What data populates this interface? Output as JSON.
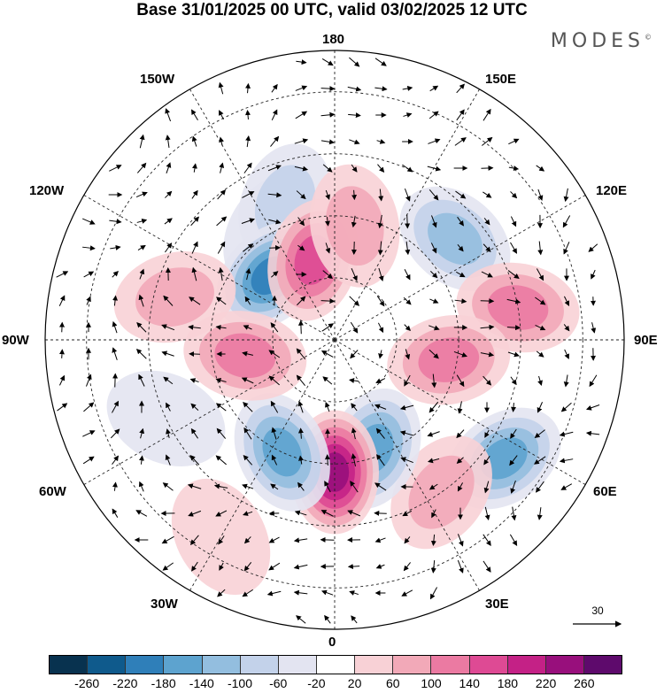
{
  "title": "Base 31/01/2025 00 UTC, valid 03/02/2025 12 UTC",
  "brand": "MODES",
  "brand_mark": "©",
  "longitude_labels": {
    "top": "180",
    "bottom": "0",
    "left": "90W",
    "right": "90E",
    "upper_left_1": "150W",
    "upper_left_2": "120W",
    "lower_left_1": "60W",
    "lower_left_2": "30W",
    "upper_right_1": "150E",
    "upper_right_2": "120E",
    "lower_right_1": "60E",
    "lower_right_2": "30E"
  },
  "reference_vector": {
    "label": "30"
  },
  "colorbar": {
    "colors": [
      "#08324f",
      "#0f5a8c",
      "#2f7fb9",
      "#5da3cf",
      "#93bedf",
      "#c3d2ea",
      "#e3e4f1",
      "#ffffff",
      "#f8d1d6",
      "#f2a9b8",
      "#eb7aa2",
      "#de4a94",
      "#c42186",
      "#980f7c",
      "#5e0a6c"
    ],
    "tick_labels": [
      "-260",
      "-220",
      "-180",
      "-140",
      "-100",
      "-60",
      "-20",
      "20",
      "60",
      "100",
      "140",
      "180",
      "220",
      "260"
    ]
  },
  "anomaly_centers": [
    {
      "lon": -150,
      "lat": 60,
      "value": -60
    },
    {
      "lon": -160,
      "lat": 55,
      "value": -100
    },
    {
      "lon": -135,
      "lat": 68,
      "value": -200
    },
    {
      "lon": -165,
      "lat": 70,
      "value": 180
    },
    {
      "lon": 170,
      "lat": 62,
      "value": 80
    },
    {
      "lon": 130,
      "lat": 52,
      "value": -140
    },
    {
      "lon": 100,
      "lat": 45,
      "value": 140
    },
    {
      "lon": 80,
      "lat": 62,
      "value": 120
    },
    {
      "lon": 55,
      "lat": 40,
      "value": -160
    },
    {
      "lon": 35,
      "lat": 45,
      "value": 100
    },
    {
      "lon": 20,
      "lat": 62,
      "value": -180
    },
    {
      "lon": 0,
      "lat": 58,
      "value": 240
    },
    {
      "lon": -25,
      "lat": 60,
      "value": -180
    },
    {
      "lon": -80,
      "lat": 68,
      "value": 120
    },
    {
      "lon": -105,
      "lat": 50,
      "value": 100
    },
    {
      "lon": -65,
      "lat": 45,
      "value": -60
    },
    {
      "lon": -30,
      "lat": 35,
      "value": 60
    }
  ]
}
